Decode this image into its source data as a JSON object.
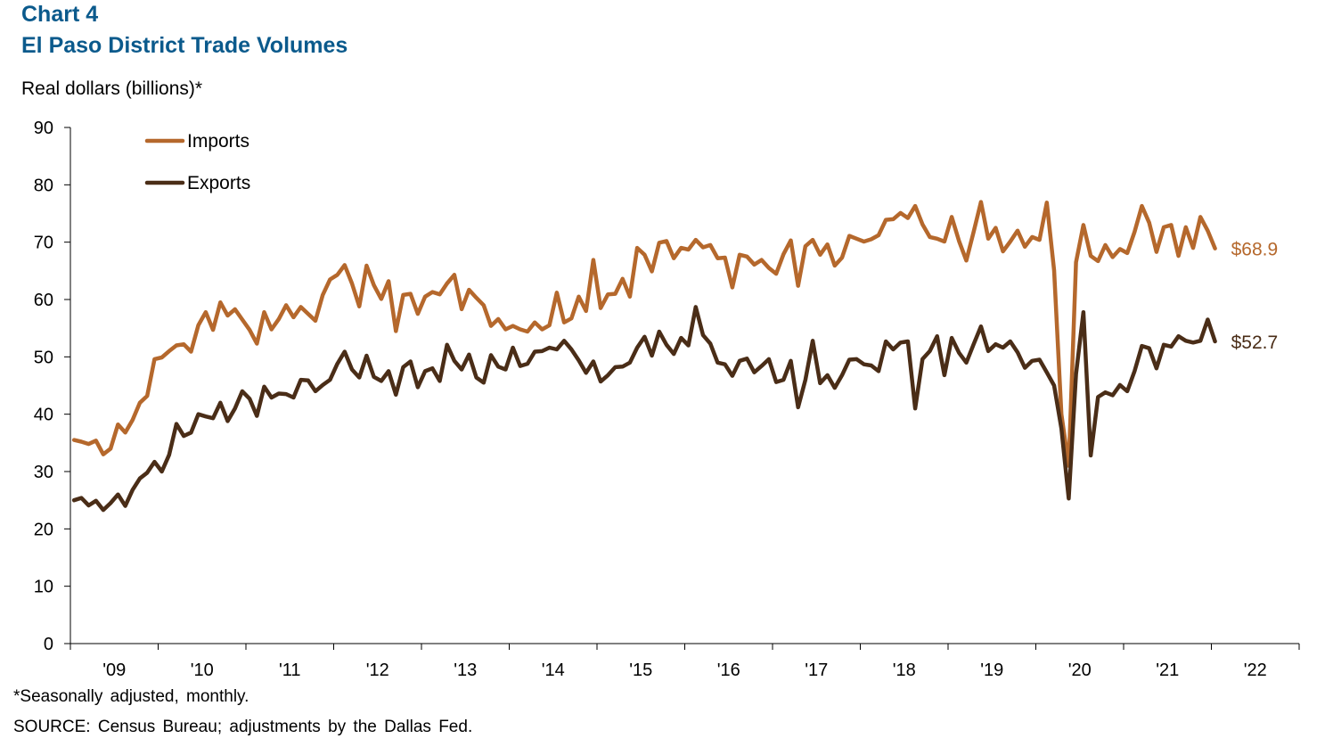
{
  "title_line1": "Chart 4",
  "title_line2": "El Paso District Trade Volumes",
  "y_axis_label": "Real dollars (billions)*",
  "footnote": "*Seasonally adjusted, monthly.",
  "source": "SOURCE: Census Bureau; adjustments by the Dallas Fed.",
  "chart_data": {
    "type": "line",
    "x_tick_labels": [
      "'09",
      "'10",
      "'11",
      "'12",
      "'13",
      "'14",
      "'15",
      "'16",
      "'17",
      "'18",
      "'19",
      "'20",
      "'21",
      "'22"
    ],
    "ylim": [
      0,
      90
    ],
    "y_ticks": [
      0,
      10,
      20,
      30,
      40,
      50,
      60,
      70,
      80,
      90
    ],
    "start": "2009-01",
    "frequency": "monthly",
    "grid": false,
    "legend_position": "top-left",
    "series": [
      {
        "name": "Imports",
        "color": "#b5682c",
        "end_label": "$68.9",
        "values": [
          35.5,
          35.2,
          34.8,
          35.4,
          33.0,
          34.0,
          38.2,
          36.8,
          39.0,
          42.0,
          43.2,
          49.6,
          49.9,
          51.0,
          52.0,
          52.2,
          50.9,
          55.5,
          57.8,
          54.7,
          59.5,
          57.2,
          58.3,
          56.5,
          54.7,
          52.3,
          57.8,
          54.8,
          56.6,
          59.0,
          56.9,
          58.7,
          57.5,
          56.3,
          60.8,
          63.5,
          64.3,
          66.0,
          62.8,
          58.8,
          65.9,
          62.5,
          60.1,
          63.2,
          54.5,
          60.8,
          61.0,
          57.5,
          60.5,
          61.3,
          60.9,
          62.8,
          64.3,
          58.3,
          61.7,
          60.3,
          59.0,
          55.4,
          56.6,
          54.8,
          55.4,
          54.8,
          54.4,
          56.0,
          54.8,
          55.5,
          61.2,
          56.0,
          56.7,
          60.5,
          58.0,
          66.9,
          58.5,
          60.9,
          61.0,
          63.6,
          60.5,
          69.0,
          67.8,
          64.9,
          69.9,
          70.2,
          67.2,
          69.0,
          68.7,
          70.4,
          69.1,
          69.5,
          67.2,
          67.3,
          62.1,
          67.8,
          67.5,
          66.1,
          66.9,
          65.5,
          64.5,
          67.9,
          70.3,
          62.4,
          69.3,
          70.4,
          67.8,
          69.6,
          65.9,
          67.3,
          71.1,
          70.6,
          70.1,
          70.5,
          71.2,
          73.9,
          74.0,
          75.1,
          74.2,
          76.3,
          73.1,
          70.9,
          70.6,
          70.1,
          74.4,
          70.2,
          66.8,
          71.8,
          77.0,
          70.6,
          72.5,
          68.4,
          70.1,
          72.0,
          69.2,
          70.9,
          70.4,
          76.9,
          65.1,
          40.0,
          31.0,
          66.5,
          73.0,
          67.6,
          66.7,
          69.5,
          67.4,
          68.8,
          68.1,
          71.8,
          76.3,
          73.4,
          68.3,
          72.6,
          73.0,
          67.6,
          72.6,
          69.0,
          74.4,
          72.0,
          68.9
        ]
      },
      {
        "name": "Exports",
        "color": "#4a2d17",
        "end_label": "$52.7",
        "values": [
          25.0,
          25.4,
          24.1,
          24.9,
          23.3,
          24.5,
          26.0,
          24.0,
          26.8,
          28.8,
          29.8,
          31.7,
          30.0,
          32.9,
          38.3,
          36.2,
          36.8,
          40.0,
          39.6,
          39.3,
          42.0,
          38.8,
          41.0,
          44.0,
          42.7,
          39.7,
          44.8,
          42.9,
          43.6,
          43.5,
          42.9,
          46.0,
          45.9,
          44.0,
          45.1,
          46.0,
          48.8,
          50.9,
          47.8,
          46.4,
          50.2,
          46.5,
          45.8,
          47.5,
          43.4,
          48.2,
          49.2,
          44.7,
          47.5,
          48.0,
          45.8,
          52.1,
          49.3,
          47.8,
          50.4,
          46.4,
          45.5,
          50.3,
          48.3,
          47.8,
          51.6,
          48.4,
          48.8,
          50.9,
          51.0,
          51.6,
          51.3,
          52.8,
          51.3,
          49.4,
          47.2,
          49.2,
          45.7,
          46.8,
          48.2,
          48.3,
          49.0,
          51.6,
          53.5,
          50.2,
          54.4,
          52.1,
          50.5,
          53.3,
          52.0,
          58.7,
          53.8,
          52.3,
          49.0,
          48.7,
          46.7,
          49.3,
          49.7,
          47.3,
          48.4,
          49.6,
          45.6,
          46.0,
          49.3,
          41.2,
          46.0,
          52.8,
          45.4,
          46.8,
          44.6,
          46.8,
          49.5,
          49.6,
          48.7,
          48.5,
          47.5,
          52.7,
          51.3,
          52.5,
          52.7,
          41.0,
          49.6,
          51.0,
          53.6,
          46.8,
          53.3,
          50.7,
          49.0,
          52.2,
          55.3,
          51.0,
          52.2,
          51.6,
          52.7,
          50.8,
          48.1,
          49.3,
          49.5,
          47.3,
          45.0,
          37.5,
          25.3,
          47.0,
          57.8,
          32.8,
          43.0,
          43.8,
          43.3,
          45.1,
          44.0,
          47.5,
          51.9,
          51.5,
          48.0,
          52.1,
          51.8,
          53.6,
          52.8,
          52.5,
          52.8,
          56.5,
          52.7
        ]
      }
    ]
  }
}
